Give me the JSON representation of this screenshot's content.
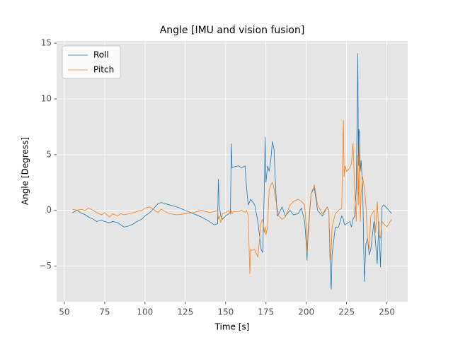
{
  "chart_data": {
    "type": "line",
    "title": "Angle [IMU and vision fusion]",
    "x_label": "Time [s]",
    "y_label": "Angle [Degress]",
    "x": [
      55,
      58,
      60,
      63,
      65,
      68,
      70,
      73,
      75,
      78,
      80,
      83,
      85,
      87,
      90,
      93,
      95,
      98,
      100,
      103,
      105,
      108,
      110,
      115,
      120,
      125,
      130,
      135,
      140,
      143,
      145,
      145.5,
      146,
      147,
      148,
      150,
      152,
      153,
      153.5,
      154,
      155,
      158,
      160,
      162,
      163,
      164,
      165,
      165.5,
      166,
      168,
      170,
      172,
      173,
      174,
      174.5,
      175,
      176,
      177,
      178,
      179,
      180,
      181,
      182,
      183,
      185,
      187,
      190,
      192,
      195,
      197,
      199,
      200,
      200.5,
      201,
      203,
      205,
      207,
      210,
      213,
      214,
      215,
      215.5,
      216,
      218,
      220,
      222,
      223,
      223.5,
      224,
      225,
      227,
      228,
      229,
      230,
      231,
      232,
      232.3,
      232.6,
      233,
      233.5,
      234,
      235,
      236,
      237,
      238,
      239,
      240,
      242,
      243,
      244,
      245,
      246,
      247,
      248,
      250,
      253
    ],
    "series": [
      {
        "name": "Roll",
        "color": "#1f77b4",
        "values": [
          -0.2,
          0,
          -0.2,
          -0.4,
          -0.6,
          -0.8,
          -1.0,
          -0.9,
          -1.0,
          -1.1,
          -1.0,
          -1.1,
          -1.3,
          -1.5,
          -1.4,
          -1.2,
          -1.0,
          -0.8,
          -0.5,
          -0.2,
          0.1,
          0.6,
          0.7,
          0.5,
          0.3,
          0.0,
          -0.3,
          -0.6,
          -1.0,
          -1.3,
          -1.2,
          2.8,
          0.5,
          -0.5,
          -0.8,
          -0.5,
          -0.3,
          -0.2,
          6.0,
          3.8,
          3.9,
          4.0,
          3.8,
          4.0,
          2.0,
          0.5,
          0.8,
          1.0,
          0.9,
          0.5,
          -1.0,
          -3.5,
          -3.8,
          2.0,
          6.6,
          2.5,
          4.0,
          3.5,
          4.5,
          6.2,
          5.5,
          2.0,
          -0.5,
          -0.3,
          0.3,
          -0.5,
          0.0,
          -0.4,
          -0.3,
          0.2,
          -1.0,
          -3.0,
          -4.5,
          -2.5,
          1.5,
          2.0,
          0.0,
          -0.5,
          0.3,
          0.0,
          -6.0,
          -7.1,
          -4.0,
          -1.5,
          -1.5,
          -0.5,
          -0.8,
          -1.2,
          -1.3,
          -1.2,
          -1.0,
          -1.5,
          -0.8,
          -0.5,
          2.0,
          14.1,
          4.0,
          7.3,
          7.0,
          3.5,
          4.5,
          2.0,
          -6.4,
          -3.0,
          -2.5,
          -4.0,
          -3.5,
          -1.0,
          -3.0,
          -4.8,
          -1.0,
          -5.1,
          0.3,
          0.5,
          0.2,
          -0.3
        ]
      },
      {
        "name": "Pitch",
        "color": "#ff7f0e",
        "values": [
          0.1,
          0.0,
          0.1,
          0.0,
          0.2,
          0.0,
          -0.2,
          -0.4,
          -0.2,
          -0.6,
          -0.3,
          -0.5,
          -0.3,
          -0.4,
          -0.3,
          -0.2,
          -0.1,
          0.0,
          0.2,
          0.3,
          0.1,
          -0.2,
          0.1,
          -0.3,
          -0.4,
          -0.3,
          -0.2,
          0.0,
          -0.2,
          -0.1,
          0.0,
          -0.8,
          -0.5,
          -1.1,
          -0.3,
          -0.2,
          0.0,
          -0.3,
          0.0,
          -0.3,
          -0.1,
          -0.1,
          0.0,
          -0.2,
          0.0,
          -0.5,
          -5.7,
          -3.5,
          -3.6,
          -3.5,
          -4.2,
          -1.0,
          -0.8,
          -2.0,
          -1.5,
          -2.2,
          -1.5,
          1.8,
          2.3,
          2.5,
          2.0,
          1.0,
          0.2,
          -0.5,
          -0.8,
          -0.6,
          0.5,
          0.8,
          1.0,
          0.8,
          0.5,
          -1.5,
          -3.8,
          -2.0,
          1.5,
          2.3,
          0.5,
          -0.3,
          0.3,
          0.0,
          -4.5,
          -3.5,
          -1.5,
          -0.3,
          0.0,
          0.2,
          8.1,
          3.0,
          4.0,
          3.5,
          3.8,
          4.2,
          6.0,
          2.0,
          -1.0,
          5.0,
          0.5,
          3.0,
          6.0,
          -1.0,
          1.5,
          3.0,
          2.0,
          0.5,
          -2.5,
          -3.5,
          -0.5,
          0.0,
          -2.0,
          0.8,
          -2.0,
          -2.5,
          -1.0,
          -1.2,
          -1.5,
          -0.8
        ]
      }
    ],
    "xlim": [
      45.2,
      262.9
    ],
    "ylim": [
      -8.2,
      15.2
    ],
    "xticks": [
      50,
      75,
      100,
      125,
      150,
      175,
      200,
      225,
      250
    ],
    "yticks": [
      {
        "value": -5,
        "label": "−5"
      },
      0,
      5,
      10,
      15
    ],
    "grid": true,
    "legend": "upper left"
  }
}
